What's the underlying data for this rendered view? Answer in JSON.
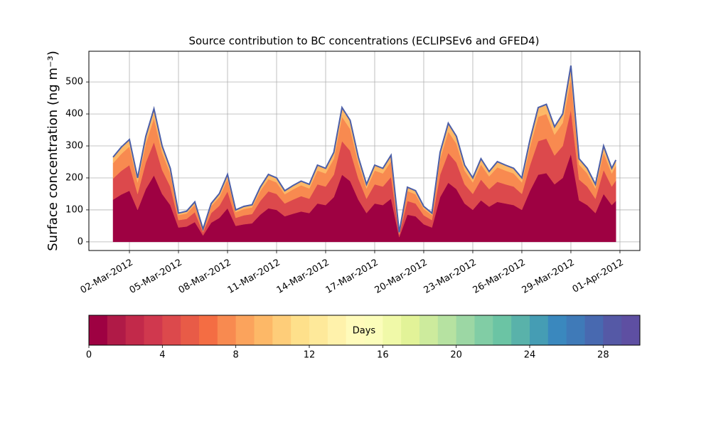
{
  "chart_data": {
    "type": "stacked_area",
    "title": "Source contribution to BC concentrations (ECLIPSEv6 and GFED4)",
    "y_label": "Surface concentration (ng m⁻³)",
    "x": [
      1,
      1.5,
      2,
      2.5,
      3,
      3.5,
      4,
      4.5,
      5,
      5.5,
      6,
      6.5,
      7,
      7.5,
      8,
      8.5,
      9,
      9.5,
      10,
      10.5,
      11,
      11.5,
      12,
      12.5,
      13,
      13.5,
      14,
      14.5,
      15,
      15.5,
      16,
      16.5,
      17,
      17.5,
      18,
      18.5,
      19,
      19.5,
      20,
      20.5,
      21,
      21.5,
      22,
      22.5,
      23,
      23.5,
      24,
      24.5,
      25,
      25.5,
      26,
      26.5,
      27,
      27.5,
      28,
      28.5,
      29,
      29.5,
      30,
      30.5,
      31,
      31.5,
      31.75
    ],
    "series": [
      {
        "color": "#9e0142",
        "values": [
          132,
          148,
          160,
          100,
          165,
          208,
          150,
          115,
          45,
          48,
          62,
          20,
          60,
          75,
          105,
          50,
          55,
          58,
          85,
          105,
          100,
          80,
          88,
          95,
          90,
          120,
          115,
          140,
          210,
          190,
          132,
          90,
          120,
          115,
          135,
          15,
          85,
          80,
          55,
          45,
          140,
          185,
          165,
          120,
          100,
          130,
          110,
          125,
          120,
          115,
          100,
          160,
          210,
          215,
          180,
          200,
          275,
          130,
          115,
          90,
          150,
          115,
          128
        ]
      },
      {
        "color": "#dc494c",
        "values": [
          66,
          74,
          80,
          50,
          83,
          104,
          75,
          58,
          23,
          24,
          31,
          10,
          30,
          38,
          53,
          25,
          28,
          29,
          43,
          53,
          50,
          40,
          44,
          48,
          45,
          60,
          58,
          70,
          105,
          95,
          66,
          45,
          60,
          58,
          68,
          8,
          43,
          40,
          28,
          23,
          70,
          93,
          83,
          60,
          50,
          65,
          55,
          63,
          60,
          58,
          50,
          80,
          105,
          108,
          90,
          100,
          138,
          65,
          58,
          45,
          75,
          58,
          64
        ]
      },
      {
        "color": "#f88a50",
        "values": [
          48,
          53,
          58,
          36,
          59,
          75,
          54,
          41,
          16,
          17,
          23,
          7,
          22,
          27,
          38,
          18,
          20,
          21,
          31,
          38,
          36,
          29,
          32,
          34,
          32,
          43,
          41,
          50,
          76,
          68,
          48,
          32,
          43,
          41,
          49,
          5,
          31,
          29,
          20,
          16,
          50,
          67,
          59,
          43,
          36,
          47,
          40,
          45,
          43,
          41,
          36,
          58,
          76,
          77,
          65,
          72,
          99,
          47,
          41,
          32,
          54,
          41,
          46
        ]
      },
      {
        "color": "#fdb867",
        "values": [
          19,
          21,
          22,
          14,
          23,
          29,
          21,
          16,
          6,
          7,
          9,
          3,
          8,
          11,
          15,
          7,
          8,
          8,
          12,
          15,
          14,
          11,
          12,
          13,
          13,
          17,
          16,
          20,
          29,
          27,
          19,
          13,
          17,
          16,
          19,
          2,
          12,
          11,
          8,
          6,
          20,
          26,
          23,
          17,
          14,
          18,
          15,
          18,
          17,
          16,
          14,
          22,
          29,
          30,
          25,
          28,
          39,
          18,
          16,
          13,
          21,
          16,
          18
        ]
      }
    ],
    "edge_color": "#4c5fa8",
    "xlim": [
      -0.48,
      33.22
    ],
    "xticks": [
      {
        "value": 2,
        "label": "02-Mar-2012"
      },
      {
        "value": 5,
        "label": "05-Mar-2012"
      },
      {
        "value": 8,
        "label": "08-Mar-2012"
      },
      {
        "value": 11,
        "label": "11-Mar-2012"
      },
      {
        "value": 14,
        "label": "14-Mar-2012"
      },
      {
        "value": 17,
        "label": "17-Mar-2012"
      },
      {
        "value": 20,
        "label": "20-Mar-2012"
      },
      {
        "value": 23,
        "label": "23-Mar-2012"
      },
      {
        "value": 26,
        "label": "26-Mar-2012"
      },
      {
        "value": 29,
        "label": "29-Mar-2012"
      },
      {
        "value": 32,
        "label": "01-Apr-2012"
      }
    ],
    "ylim": [
      -27,
      596
    ],
    "yticks": [
      0,
      100,
      200,
      300,
      400,
      500
    ],
    "grid": true,
    "colorbar": {
      "label": "Days",
      "lim": [
        0,
        30
      ],
      "ticks": [
        0,
        4,
        8,
        12,
        16,
        20,
        24,
        28
      ],
      "colors": [
        "#9e0142",
        "#b01a47",
        "#c2294a",
        "#d0384e",
        "#dc494c",
        "#e85b47",
        "#f46d43",
        "#f88a50",
        "#fba35c",
        "#fdb867",
        "#fecd79",
        "#fee08b",
        "#fee99a",
        "#fff2ab",
        "#fffbbb",
        "#fbfdba",
        "#f0f9a8",
        "#e2f398",
        "#cdeb9d",
        "#b6e2a1",
        "#9cd7a4",
        "#81cda5",
        "#6bc4a4",
        "#59b2aa",
        "#459db4",
        "#3a88be",
        "#3f7ab8",
        "#4869b0",
        "#5559a6",
        "#5e4fa2"
      ]
    }
  }
}
